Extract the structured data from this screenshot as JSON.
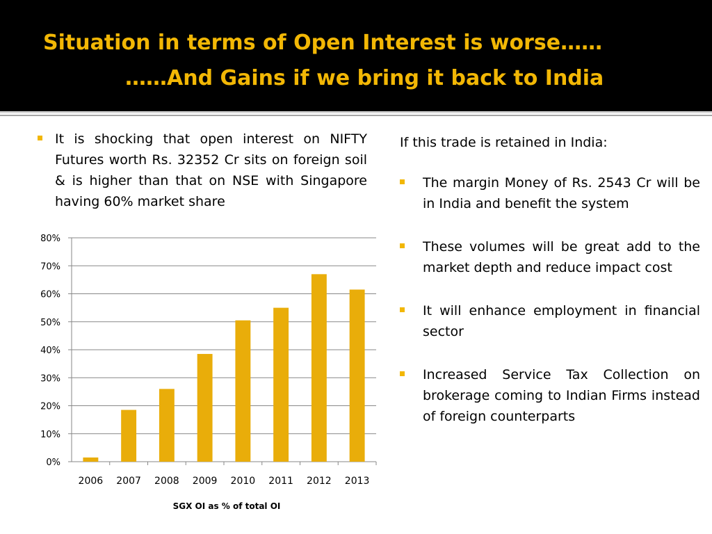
{
  "title": {
    "line1": "Situation in terms of Open Interest is worse……",
    "line2": "……And Gains if we bring it back to India"
  },
  "left_bullet": "It is shocking that open interest on NIFTY Futures worth Rs. 32352 Cr sits on foreign soil & is higher than that on NSE with Singapore having 60% market share",
  "right": {
    "intro": "If this trade is retained in India:",
    "bullets": [
      "The margin Money of Rs. 2543 Cr will be in India and benefit the system",
      "These volumes will be great add to the market depth and reduce impact cost",
      "It will enhance employment in financial sector",
      "Increased Service Tax Collection on brokerage coming to Indian Firms instead of foreign counterparts"
    ]
  },
  "colors": {
    "accent": "#f2b705",
    "bar": "#e9ad0a",
    "header_bg": "#000000"
  },
  "chart_data": {
    "type": "bar",
    "categories": [
      "2006",
      "2007",
      "2008",
      "2009",
      "2010",
      "2011",
      "2012",
      "2013"
    ],
    "values": [
      1.5,
      18.5,
      26,
      38.5,
      50.5,
      55,
      67,
      61.5
    ],
    "ylim": [
      0,
      80
    ],
    "yticks": [
      "0%",
      "10%",
      "20%",
      "30%",
      "40%",
      "50%",
      "60%",
      "70%",
      "80%"
    ],
    "xlabel": "SGX OI as % of total OI",
    "ylabel": "",
    "grid": true,
    "legend": "none"
  }
}
